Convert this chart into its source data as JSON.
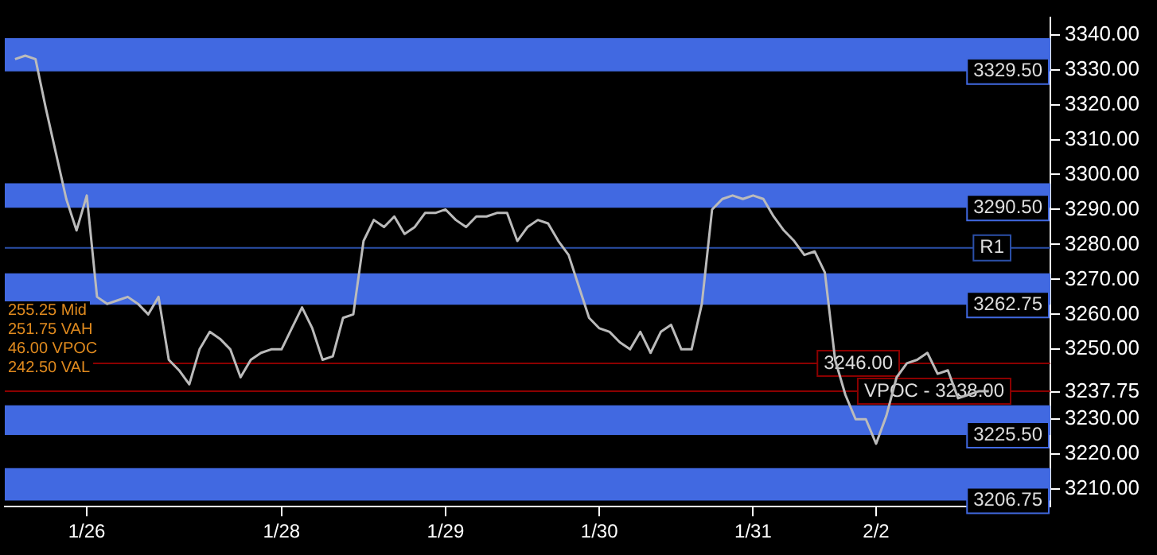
{
  "chart_data": {
    "type": "line",
    "categories": [
      null,
      null,
      null,
      null,
      null,
      null,
      null,
      null,
      "1/26",
      null,
      null,
      null,
      null,
      null,
      null,
      null,
      null,
      null,
      null,
      null,
      null,
      null,
      null,
      null,
      null,
      null,
      null,
      "1/28",
      null,
      null,
      null,
      null,
      null,
      null,
      null,
      null,
      null,
      null,
      null,
      null,
      null,
      null,
      null,
      "1/29",
      null,
      null,
      null,
      null,
      null,
      null,
      null,
      null,
      null,
      null,
      null,
      null,
      null,
      null,
      "1/30",
      null,
      null,
      null,
      null,
      null,
      null,
      null,
      null,
      null,
      null,
      null,
      null,
      null,
      null,
      "1/31",
      null,
      null,
      null,
      null,
      null,
      null,
      null,
      null,
      null,
      null,
      null,
      "2/2",
      null,
      null,
      null,
      null,
      null,
      null,
      null,
      null,
      null,
      null,
      null,
      null,
      null,
      null,
      null,
      null,
      null
    ],
    "series": [
      {
        "color": "#bbbbbb",
        "values": [
          null,
          3333,
          3334,
          3333,
          3319,
          3306,
          3293,
          3284,
          3294,
          3265,
          3263,
          3264,
          3265,
          3263,
          3260,
          3265,
          3247,
          3244,
          3240,
          3250,
          3255,
          3253,
          3250,
          3242,
          3247,
          3249,
          3250,
          3250,
          3256,
          3262,
          3256,
          3247,
          3248,
          3259,
          3260,
          3281,
          3287,
          3285,
          3288,
          3283,
          3285,
          3289,
          3289,
          3290,
          3287,
          3285,
          3288,
          3288,
          3289,
          3289,
          3281,
          3285,
          3287,
          3286,
          3281,
          3277,
          3268,
          3259,
          3256,
          3255,
          3252,
          3250,
          3255,
          3249,
          3255,
          3257,
          3250,
          3250,
          3263,
          3290,
          3293,
          3294,
          3293,
          3294,
          3293,
          3288,
          3284,
          3281,
          3277,
          3278,
          3272,
          3247,
          3237,
          3230,
          3230,
          3223,
          3231,
          3242,
          3246,
          3247,
          3249,
          3243,
          3244,
          3236,
          3237,
          3238,
          3238,
          null,
          null,
          null,
          null,
          null,
          null
        ]
      }
    ],
    "ylim": [
      3205,
      3345
    ],
    "yticks": [
      {
        "value": 3210,
        "label": "3210.00"
      },
      {
        "value": 3220,
        "label": "3220.00"
      },
      {
        "value": 3230,
        "label": "3230.00"
      },
      {
        "value": 3237.75,
        "label": "3237.75"
      },
      {
        "value": 3250,
        "label": "3250.00"
      },
      {
        "value": 3260,
        "label": "3260.00"
      },
      {
        "value": 3270,
        "label": "3270.00"
      },
      {
        "value": 3280,
        "label": "3280.00"
      },
      {
        "value": 3290,
        "label": "3290.00"
      },
      {
        "value": 3300,
        "label": "3300.00"
      },
      {
        "value": 3310,
        "label": "3310.00"
      },
      {
        "value": 3320,
        "label": "3320.00"
      },
      {
        "value": 3330,
        "label": "3330.00"
      },
      {
        "value": 3340,
        "label": "3340.00"
      }
    ],
    "bands": [
      {
        "axis": "y",
        "from": 3329.5,
        "to": 3339,
        "label": "3329.50",
        "color": "#4169e1"
      },
      {
        "axis": "y",
        "from": 3290.5,
        "to": 3297.5,
        "label": "3290.50",
        "color": "#4169e1"
      },
      {
        "axis": "y",
        "from": 3262.75,
        "to": 3271.75,
        "label": "3262.75",
        "color": "#4169e1"
      },
      {
        "axis": "y",
        "from": 3225.5,
        "to": 3234,
        "label": "3225.50",
        "color": "#4169e1"
      },
      {
        "axis": "y",
        "from": 3206.75,
        "to": 3216,
        "label": "3206.75",
        "color": "#4169e1"
      }
    ],
    "ref_lines": [
      {
        "axis": "y",
        "value": 3279,
        "label": "R1",
        "color": "#2b4fa8"
      },
      {
        "axis": "y",
        "value": 3246,
        "label": "3246.00",
        "color": "#8b0000"
      },
      {
        "axis": "y",
        "value": 3238,
        "label": "VPOC - 3238.00",
        "color": "#8b0000"
      }
    ],
    "annotations": [
      "255.25 Mid",
      "251.75 VAH",
      "46.00 VPOC",
      "242.50 VAL"
    ],
    "grid": false,
    "legend": false,
    "marker": "none",
    "line_style": "solid"
  }
}
